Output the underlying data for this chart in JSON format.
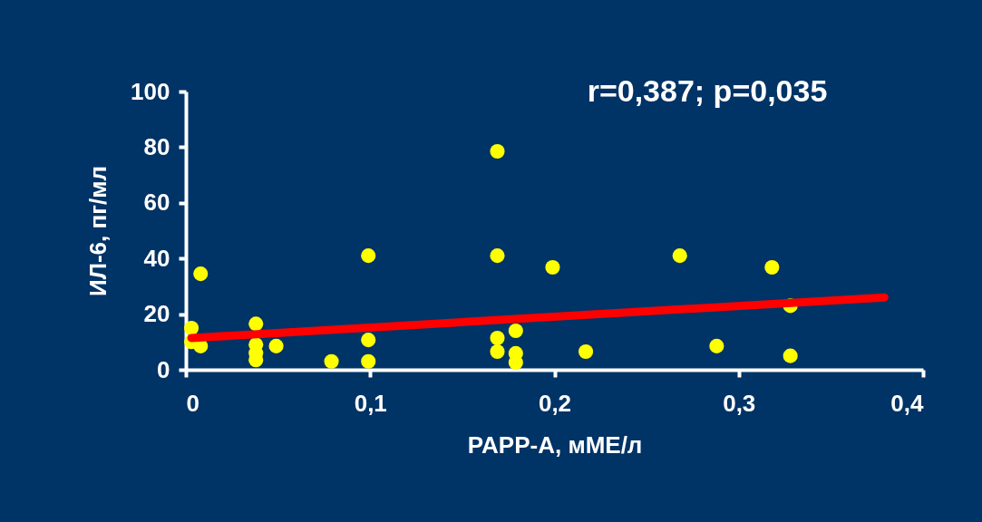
{
  "chart_data": {
    "type": "scatter",
    "xlabel": "PAPP-A, мМЕ/л",
    "ylabel": "ИЛ-6, пг/мл",
    "annotations": [
      "r=0,387;  p=0,035"
    ],
    "xlim": [
      0,
      0.4
    ],
    "ylim": [
      0,
      100
    ],
    "xticks": [
      0,
      {
        "value": 0.1,
        "label": "0,1"
      },
      {
        "value": 0.2,
        "label": "0,2"
      },
      {
        "value": 0.3,
        "label": "0,3"
      },
      {
        "value": 0.4,
        "label": "0,4"
      }
    ],
    "yticks": [
      0,
      20,
      40,
      60,
      80,
      100
    ],
    "grid": false,
    "series": [
      {
        "marker": "circle",
        "color": "#ffff00",
        "x": [
          0.003,
          0.003,
          0.008,
          0.008,
          0.038,
          0.038,
          0.038,
          0.038,
          0.049,
          0.079,
          0.099,
          0.099,
          0.099,
          0.169,
          0.169,
          0.169,
          0.169,
          0.179,
          0.179,
          0.179,
          0.199,
          0.217,
          0.268,
          0.288,
          0.318,
          0.328,
          0.328
        ],
        "values": [
          15,
          10,
          8.5,
          34.5,
          16.5,
          9,
          6,
          3.5,
          8.5,
          3,
          41,
          10.7,
          3,
          78.5,
          41,
          11.4,
          6.5,
          14,
          5.9,
          2.6,
          36.8,
          6.5,
          41,
          8.5,
          36.8,
          23,
          5
        ]
      },
      {
        "type": "line",
        "line_style": "solid",
        "color": "#ff0000",
        "x": [
          0.003,
          0.379
        ],
        "values": [
          11.4,
          26
        ]
      }
    ]
  }
}
